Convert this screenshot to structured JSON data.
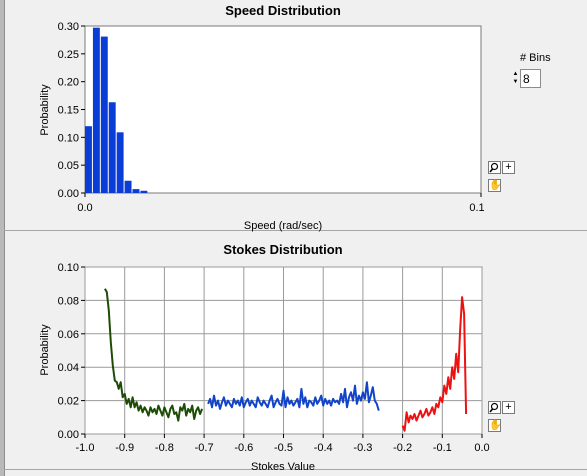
{
  "speed_chart": {
    "title": "Speed Distribution",
    "xlabel": "Speed (rad/sec)",
    "ylabel": "Probability",
    "x_ticks": [
      "0.0",
      "0.1"
    ],
    "y_ticks": [
      "0.30",
      "0.25",
      "0.20",
      "0.15",
      "0.10",
      "0.05",
      "0.00"
    ]
  },
  "stokes_chart": {
    "title": "Stokes Distribution",
    "xlabel": "Stokes Value",
    "ylabel": "Probability",
    "x_ticks": [
      "-1.0",
      "-0.9",
      "-0.8",
      "-0.7",
      "-0.6",
      "-0.5",
      "-0.4",
      "-0.3",
      "-0.2",
      "-0.1",
      "0.0"
    ],
    "y_ticks": [
      "0.10",
      "0.08",
      "0.06",
      "0.04",
      "0.02",
      "0.00"
    ]
  },
  "bins_control": {
    "label": "# Bins",
    "value": "8"
  },
  "palette": {
    "zoom_icon": "zoom-icon",
    "cursor_icon": "crosshair-icon",
    "pan_icon": "hand-pan-icon"
  },
  "colors": {
    "bars": "#0a3cd6",
    "series_green": "#1d4d05",
    "series_blue": "#1144c8",
    "series_red": "#ee1111"
  },
  "chart_data": [
    {
      "type": "bar",
      "title": "Speed Distribution",
      "xlabel": "Speed (rad/sec)",
      "ylabel": "Probability",
      "xlim": [
        0,
        0.1
      ],
      "ylim": [
        0,
        0.3
      ],
      "bin_width": 0.002,
      "x": [
        0.001,
        0.003,
        0.005,
        0.007,
        0.009,
        0.011,
        0.013,
        0.015,
        0.017,
        0.019
      ],
      "values": [
        0.12,
        0.297,
        0.281,
        0.163,
        0.109,
        0.022,
        0.007,
        0.004,
        0.0,
        0.0
      ]
    },
    {
      "type": "line",
      "title": "Stokes Distribution",
      "xlabel": "Stokes Value",
      "ylabel": "Probability",
      "xlim": [
        -1.0,
        0.0
      ],
      "ylim": [
        0,
        0.1
      ],
      "grid": true,
      "series": [
        {
          "x": [
            -0.95,
            -0.945,
            -0.94,
            -0.935,
            -0.93,
            -0.925,
            -0.92,
            -0.915,
            -0.91,
            -0.905,
            -0.9,
            -0.895,
            -0.89,
            -0.885,
            -0.88,
            -0.875,
            -0.87,
            -0.865,
            -0.86,
            -0.855,
            -0.85,
            -0.845,
            -0.84,
            -0.835,
            -0.83,
            -0.825,
            -0.82,
            -0.815,
            -0.81,
            -0.805,
            -0.8,
            -0.795,
            -0.79,
            -0.785,
            -0.78,
            -0.775,
            -0.77,
            -0.765,
            -0.76,
            -0.755,
            -0.75,
            -0.745,
            -0.74,
            -0.735,
            -0.73,
            -0.725,
            -0.72,
            -0.715,
            -0.71,
            -0.705
          ],
          "y": [
            0.087,
            0.085,
            0.074,
            0.055,
            0.041,
            0.032,
            0.031,
            0.027,
            0.031,
            0.022,
            0.024,
            0.018,
            0.021,
            0.016,
            0.022,
            0.016,
            0.019,
            0.014,
            0.017,
            0.013,
            0.016,
            0.014,
            0.011,
            0.016,
            0.013,
            0.015,
            0.012,
            0.017,
            0.014,
            0.011,
            0.016,
            0.013,
            0.01,
            0.015,
            0.017,
            0.012,
            0.013,
            0.008,
            0.016,
            0.014,
            0.018,
            0.011,
            0.015,
            0.013,
            0.017,
            0.009,
            0.014,
            0.016,
            0.012,
            0.015
          ]
        },
        {
          "x": [
            -0.69,
            -0.685,
            -0.68,
            -0.675,
            -0.67,
            -0.665,
            -0.66,
            -0.655,
            -0.65,
            -0.645,
            -0.64,
            -0.635,
            -0.63,
            -0.625,
            -0.62,
            -0.615,
            -0.61,
            -0.605,
            -0.6,
            -0.595,
            -0.59,
            -0.585,
            -0.58,
            -0.575,
            -0.57,
            -0.565,
            -0.56,
            -0.555,
            -0.55,
            -0.545,
            -0.54,
            -0.535,
            -0.53,
            -0.525,
            -0.52,
            -0.515,
            -0.51,
            -0.505,
            -0.5,
            -0.495,
            -0.49,
            -0.485,
            -0.48,
            -0.475,
            -0.47,
            -0.465,
            -0.46,
            -0.455,
            -0.45,
            -0.445,
            -0.44,
            -0.435,
            -0.43,
            -0.425,
            -0.42,
            -0.415,
            -0.41,
            -0.405,
            -0.4,
            -0.395,
            -0.39,
            -0.385,
            -0.38,
            -0.375,
            -0.37,
            -0.365,
            -0.36,
            -0.355,
            -0.35,
            -0.345,
            -0.34,
            -0.335,
            -0.33,
            -0.325,
            -0.32,
            -0.315,
            -0.31,
            -0.305,
            -0.3,
            -0.295,
            -0.29,
            -0.285,
            -0.28,
            -0.275,
            -0.27,
            -0.265,
            -0.26
          ],
          "y": [
            0.018,
            0.021,
            0.016,
            0.023,
            0.017,
            0.02,
            0.015,
            0.019,
            0.022,
            0.017,
            0.02,
            0.018,
            0.016,
            0.021,
            0.018,
            0.02,
            0.017,
            0.022,
            0.016,
            0.019,
            0.021,
            0.017,
            0.02,
            0.018,
            0.016,
            0.022,
            0.019,
            0.017,
            0.02,
            0.018,
            0.016,
            0.02,
            0.023,
            0.016,
            0.019,
            0.021,
            0.018,
            0.017,
            0.026,
            0.016,
            0.022,
            0.018,
            0.02,
            0.017,
            0.019,
            0.021,
            0.016,
            0.027,
            0.018,
            0.022,
            0.016,
            0.02,
            0.019,
            0.017,
            0.022,
            0.018,
            0.02,
            0.023,
            0.017,
            0.021,
            0.018,
            0.02,
            0.017,
            0.021,
            0.019,
            0.02,
            0.018,
            0.024,
            0.019,
            0.027,
            0.016,
            0.022,
            0.025,
            0.02,
            0.029,
            0.018,
            0.023,
            0.02,
            0.025,
            0.021,
            0.031,
            0.019,
            0.023,
            0.028,
            0.02,
            0.018,
            0.014
          ]
        },
        {
          "x": [
            -0.2,
            -0.195,
            -0.19,
            -0.185,
            -0.18,
            -0.175,
            -0.17,
            -0.165,
            -0.16,
            -0.155,
            -0.15,
            -0.145,
            -0.14,
            -0.135,
            -0.13,
            -0.125,
            -0.12,
            -0.115,
            -0.11,
            -0.105,
            -0.1,
            -0.095,
            -0.09,
            -0.085,
            -0.08,
            -0.075,
            -0.07,
            -0.065,
            -0.06,
            -0.055,
            -0.05,
            -0.045,
            -0.04
          ],
          "y": [
            0.005,
            0.002,
            0.013,
            0.007,
            0.011,
            0.009,
            0.012,
            0.008,
            0.011,
            0.014,
            0.01,
            0.012,
            0.015,
            0.011,
            0.013,
            0.016,
            0.012,
            0.018,
            0.016,
            0.022,
            0.019,
            0.029,
            0.024,
            0.034,
            0.027,
            0.04,
            0.033,
            0.048,
            0.037,
            0.063,
            0.082,
            0.072,
            0.012
          ]
        }
      ]
    }
  ]
}
